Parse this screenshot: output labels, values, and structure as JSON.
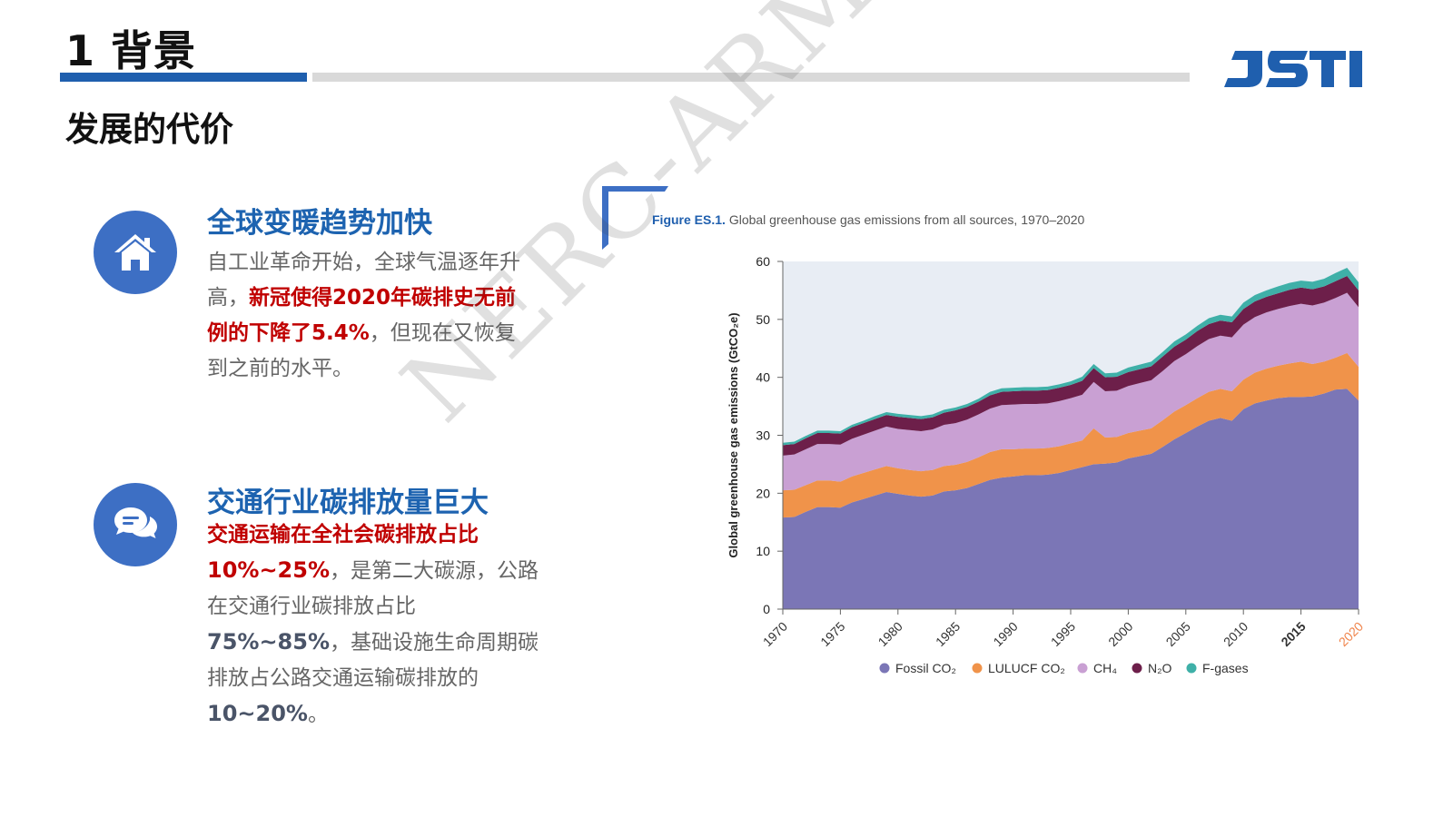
{
  "header": {
    "title": "1 背景",
    "subtitle": "发展的代价",
    "logo_text": "JSTI"
  },
  "sections": [
    {
      "icon": "home-icon",
      "heading": "全球变暖趋势加快",
      "body_1": "自工业革命开始，全球气温逐年升高，",
      "body_2": "新冠使得2020年碳排史无前例的下降了5.4%",
      "body_3": "，但现在又恢复到之前的水平。"
    },
    {
      "icon": "chat-bubbles-icon",
      "heading": "交通行业碳排放量巨大",
      "body_1": "交通运输在全社会碳排放占比",
      "body_2": "10%~25%",
      "body_3": "，是第二大碳源，公路在交通行业碳排放占比",
      "body_4": "75%~85%",
      "body_5": "，基础设施生命周期碳排放占公路交通运输碳排放的",
      "body_6": "10~20%",
      "body_7": "。"
    }
  ],
  "watermark": "NERC-ARM",
  "figure": {
    "label": "Figure ES.1.",
    "caption": "Global greenhouse gas emissions from all sources, 1970–2020"
  },
  "colors": {
    "brand_blue": "#1f5fae",
    "highlight_red": "#c00000",
    "fossil": "#7b76b6",
    "lulucf": "#f0934a",
    "ch4": "#c9a0d3",
    "n2o": "#6d1f4a",
    "fgases": "#3fb0a8",
    "year_2020": "#f0834a"
  },
  "chart_data": {
    "type": "area",
    "stacked": true,
    "title": "",
    "xlabel": "",
    "ylabel": "Global greenhouse gas emissions (GtCO₂e)",
    "ylim": [
      0,
      60
    ],
    "yticks": [
      0,
      10,
      20,
      30,
      40,
      50,
      60
    ],
    "xlim": [
      1970,
      2020
    ],
    "xticks": [
      "1970",
      "1975",
      "1980",
      "1985",
      "1990",
      "1995",
      "2000",
      "2005",
      "2010",
      "2015",
      "2020"
    ],
    "legend_position": "bottom",
    "grid": false,
    "x": [
      1970,
      1971,
      1972,
      1973,
      1974,
      1975,
      1976,
      1977,
      1978,
      1979,
      1980,
      1981,
      1982,
      1983,
      1984,
      1985,
      1986,
      1987,
      1988,
      1989,
      1990,
      1991,
      1992,
      1993,
      1994,
      1995,
      1996,
      1997,
      1998,
      1999,
      2000,
      2001,
      2002,
      2003,
      2004,
      2005,
      2006,
      2007,
      2008,
      2009,
      2010,
      2011,
      2012,
      2013,
      2014,
      2015,
      2016,
      2017,
      2018,
      2019,
      2020
    ],
    "series": [
      {
        "name": "Fossil CO₂",
        "values": [
          15.8,
          15.9,
          16.8,
          17.6,
          17.6,
          17.5,
          18.4,
          19.0,
          19.6,
          20.2,
          19.9,
          19.6,
          19.4,
          19.6,
          20.3,
          20.5,
          20.9,
          21.6,
          22.3,
          22.7,
          22.9,
          23.1,
          23.1,
          23.2,
          23.5,
          24.0,
          24.5,
          25.0,
          25.1,
          25.3,
          26.0,
          26.4,
          26.8,
          28.0,
          29.3,
          30.4,
          31.5,
          32.5,
          33.0,
          32.5,
          34.5,
          35.5,
          36.0,
          36.4,
          36.6,
          36.6,
          36.7,
          37.2,
          37.9,
          38.0,
          36.0
        ]
      },
      {
        "name": "LULUCF CO₂",
        "values": [
          4.7,
          4.7,
          4.6,
          4.6,
          4.6,
          4.5,
          4.5,
          4.5,
          4.5,
          4.5,
          4.4,
          4.4,
          4.4,
          4.4,
          4.4,
          4.4,
          4.5,
          4.6,
          4.8,
          4.9,
          4.7,
          4.6,
          4.6,
          4.6,
          4.6,
          4.6,
          4.6,
          6.2,
          4.5,
          4.4,
          4.4,
          4.4,
          4.4,
          4.6,
          4.8,
          4.8,
          4.9,
          5.0,
          5.0,
          5.1,
          5.1,
          5.3,
          5.5,
          5.6,
          5.8,
          6.1,
          5.6,
          5.5,
          5.5,
          6.2,
          5.8
        ]
      },
      {
        "name": "CH₄",
        "values": [
          6.0,
          6.1,
          6.2,
          6.3,
          6.3,
          6.4,
          6.5,
          6.6,
          6.7,
          6.8,
          6.8,
          6.9,
          6.9,
          7.0,
          7.1,
          7.2,
          7.3,
          7.4,
          7.5,
          7.6,
          7.7,
          7.7,
          7.7,
          7.7,
          7.8,
          7.8,
          7.9,
          8.0,
          8.0,
          8.0,
          8.1,
          8.2,
          8.3,
          8.5,
          8.7,
          8.8,
          9.0,
          9.1,
          9.2,
          9.3,
          9.5,
          9.6,
          9.7,
          9.8,
          9.9,
          10.0,
          10.1,
          10.2,
          10.3,
          10.4,
          10.3
        ]
      },
      {
        "name": "N₂O",
        "values": [
          1.8,
          1.8,
          1.9,
          1.9,
          1.9,
          1.9,
          2.0,
          2.0,
          2.0,
          2.0,
          2.1,
          2.1,
          2.1,
          2.1,
          2.1,
          2.2,
          2.2,
          2.2,
          2.3,
          2.3,
          2.3,
          2.3,
          2.3,
          2.3,
          2.3,
          2.3,
          2.4,
          2.4,
          2.4,
          2.4,
          2.4,
          2.4,
          2.4,
          2.5,
          2.5,
          2.5,
          2.6,
          2.6,
          2.6,
          2.6,
          2.7,
          2.7,
          2.7,
          2.7,
          2.8,
          2.8,
          2.8,
          2.8,
          2.9,
          2.9,
          2.9
        ]
      },
      {
        "name": "F-gases",
        "values": [
          0.4,
          0.4,
          0.4,
          0.4,
          0.4,
          0.4,
          0.4,
          0.4,
          0.5,
          0.5,
          0.5,
          0.5,
          0.5,
          0.5,
          0.5,
          0.5,
          0.5,
          0.5,
          0.6,
          0.6,
          0.6,
          0.6,
          0.6,
          0.6,
          0.6,
          0.6,
          0.7,
          0.7,
          0.7,
          0.7,
          0.8,
          0.8,
          0.8,
          0.8,
          0.9,
          0.9,
          0.9,
          1.0,
          1.0,
          1.0,
          1.1,
          1.1,
          1.1,
          1.2,
          1.2,
          1.2,
          1.3,
          1.3,
          1.4,
          1.4,
          1.4
        ]
      }
    ]
  }
}
